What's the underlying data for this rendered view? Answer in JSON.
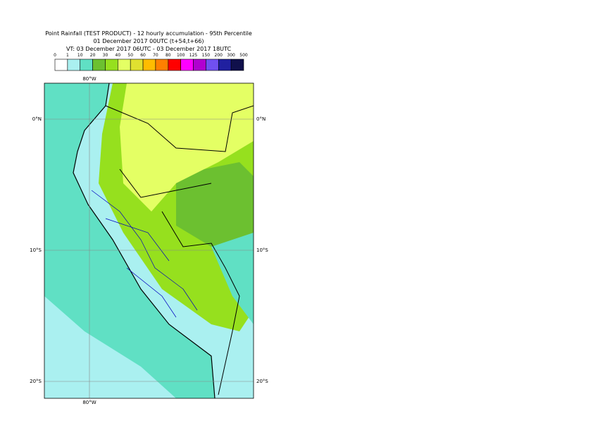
{
  "title": {
    "line1": "Point Rainfall (TEST PRODUCT) - 12 hourly accumulation - 95th Percentile",
    "line2": "01 December 2017 00UTC (t+54,t+66)",
    "line3": "VT: 03 December 2017 06UTC - 03 December 2017 18UTC"
  },
  "legend": {
    "labels": [
      0,
      1,
      10,
      20,
      30,
      40,
      50,
      60,
      70,
      80,
      100,
      125,
      150,
      200,
      300,
      500
    ],
    "colors": [
      "#ffffff",
      "#aaf0f0",
      "#60e0c4",
      "#6cc030",
      "#96e01e",
      "#e4ff64",
      "#e0e030",
      "#ffbc00",
      "#ff8000",
      "#ff0000",
      "#ff00ff",
      "#b000d0",
      "#7050f0",
      "#2020a0",
      "#10104c"
    ]
  },
  "map": {
    "lon_top": "80°W",
    "lon_bottom": "80°W",
    "lat_labels": [
      "0°N",
      "10°S",
      "20°S"
    ]
  }
}
